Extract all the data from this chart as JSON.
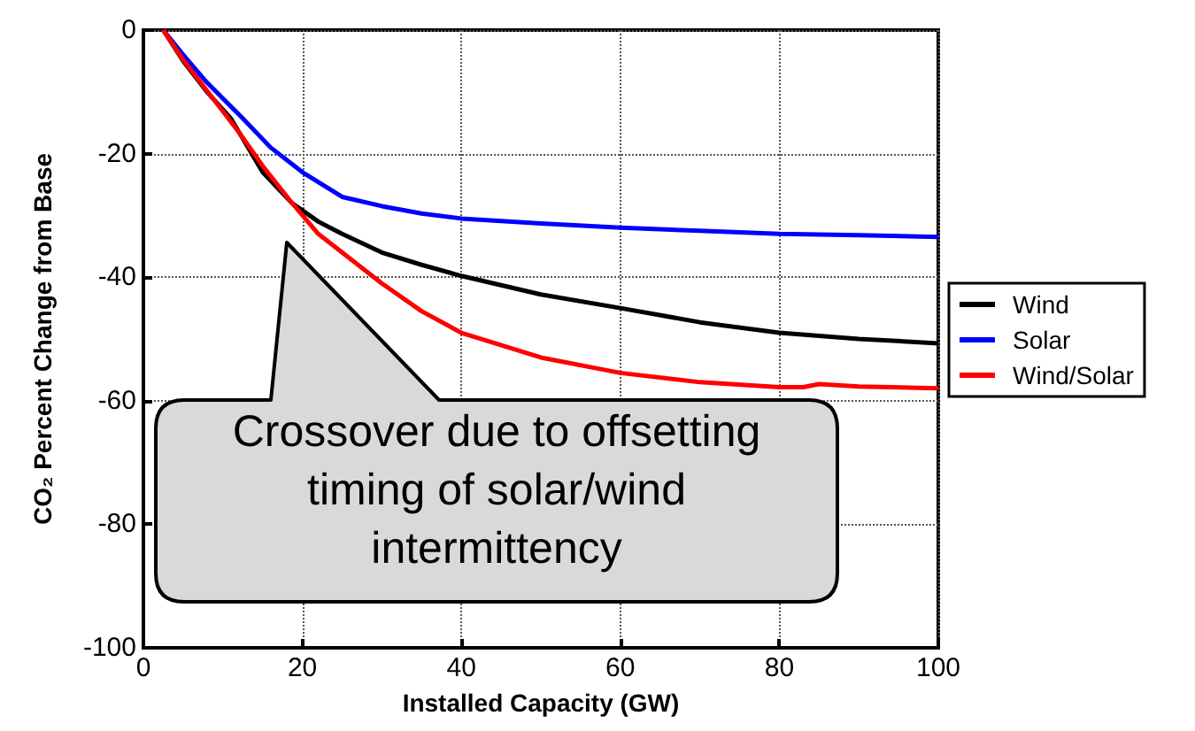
{
  "chart_data": {
    "type": "line",
    "xlabel": "Installed Capacity (GW)",
    "ylabel": "CO₂ Percent Change from Base",
    "xlim": [
      0,
      100
    ],
    "xticks": [
      0,
      20,
      40,
      60,
      80,
      100
    ],
    "ylim": [
      -100,
      0
    ],
    "yticks": [
      -100,
      -80,
      -60,
      -40,
      -20,
      0
    ],
    "grid": true,
    "legend": "right",
    "marker": "none",
    "line_style": "solid",
    "annotations": [
      "Crossover due to offsetting timing of solar/wind intermittency"
    ],
    "series": [
      {
        "name": "Wind",
        "color": "#000000",
        "x": [
          2.5,
          5,
          8,
          11,
          15,
          18.7,
          22,
          25,
          30,
          35,
          40,
          50,
          60,
          70,
          80,
          90,
          100
        ],
        "values": [
          0,
          -5,
          -10,
          -14.3,
          -23,
          -28,
          -31,
          -33,
          -36,
          -38,
          -39.8,
          -42.8,
          -45,
          -47.3,
          -49,
          -50,
          -50.7
        ]
      },
      {
        "name": "Solar",
        "color": "#0000ff",
        "x": [
          2.5,
          5,
          8,
          12.5,
          16,
          20,
          25,
          30,
          35,
          40,
          50,
          60,
          70,
          80,
          90,
          100
        ],
        "values": [
          0,
          -4,
          -8.5,
          -14.3,
          -19,
          -23,
          -27,
          -28.5,
          -29.7,
          -30.5,
          -31.3,
          -32,
          -32.5,
          -33,
          -33.2,
          -33.5
        ]
      },
      {
        "name": "Wind/Solar",
        "color": "#ff0000",
        "x": [
          2.5,
          5,
          8,
          12,
          15,
          18.7,
          22,
          25,
          30,
          35,
          40,
          50,
          60,
          70,
          80,
          83,
          85,
          90,
          100
        ],
        "values": [
          0,
          -4.8,
          -9.8,
          -16.5,
          -22,
          -28,
          -33,
          -36,
          -41,
          -45.5,
          -49,
          -53,
          -55.5,
          -57,
          -57.8,
          -57.8,
          -57.3,
          -57.7,
          -58
        ]
      }
    ]
  }
}
